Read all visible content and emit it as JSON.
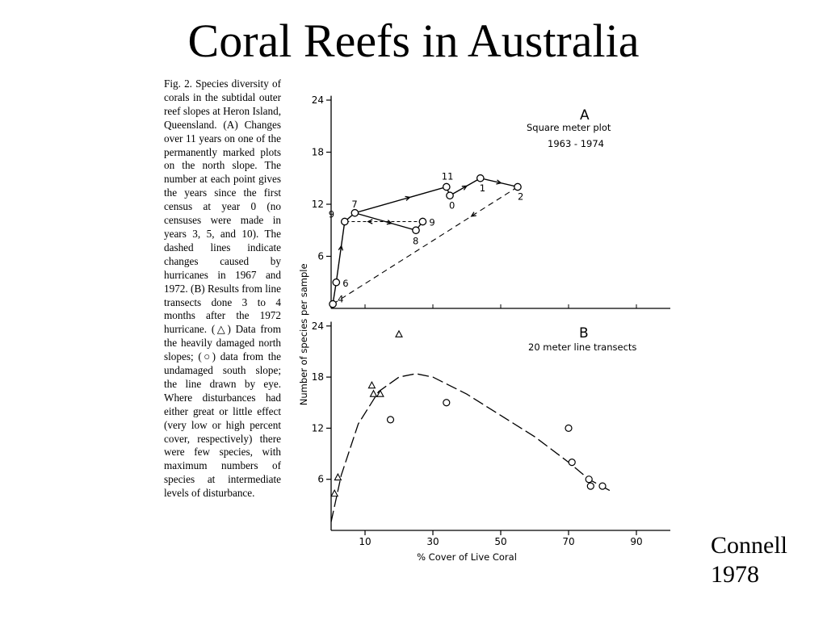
{
  "slide": {
    "title": "Coral Reefs in Australia",
    "citation_name": "Connell",
    "citation_year": "1978"
  },
  "caption": {
    "text": "Fig. 2. Species diversity of corals in the subtidal outer reef slopes at Heron Island, Queensland. (A) Changes over 11 years on one of the permanently marked plots on the north slope. The number at each point gives the years since the first census at year 0 (no censuses were made in years 3, 5, and 10). The dashed lines indicate changes caused by hurricanes in 1967 and 1972. (B) Results from line transects done 3 to 4 months after the 1972 hurricane. (△) Data from the heavily damaged north slopes; (○) data from the undamaged south slope; the line drawn by eye. Where disturbances had either great or little effect (very low or high percent cover, respectively) there were few species, with maximum numbers of species at intermediate levels of disturbance."
  },
  "chart_data": [
    {
      "panel": "A",
      "type": "line",
      "title": "Square meter plot",
      "subtitle": "1963 - 1974",
      "xlabel": "% Cover of Live Coral",
      "ylabel": "Number of species per sample",
      "xlim": [
        0,
        100
      ],
      "ylim": [
        0,
        24
      ],
      "yticks": [
        6,
        12,
        18,
        24
      ],
      "points": [
        {
          "label": "0",
          "x": 35,
          "y": 13
        },
        {
          "label": "1",
          "x": 44,
          "y": 15
        },
        {
          "label": "2",
          "x": 55,
          "y": 14
        },
        {
          "label": "4",
          "x": 0.5,
          "y": 0.5
        },
        {
          "label": "6",
          "x": 1.5,
          "y": 3
        },
        {
          "label": "7",
          "x": 7,
          "y": 11
        },
        {
          "label": "8",
          "x": 25,
          "y": 9
        },
        {
          "label": "9",
          "x": 4,
          "y": 10
        },
        {
          "label": "9",
          "x": 27,
          "y": 10
        },
        {
          "label": "11",
          "x": 34,
          "y": 14
        }
      ],
      "solid_path": [
        [
          0.5,
          0.5
        ],
        [
          1.5,
          3
        ],
        [
          4,
          10
        ],
        [
          7,
          11
        ],
        [
          34,
          14
        ],
        [
          35,
          13
        ],
        [
          44,
          15
        ],
        [
          55,
          14
        ]
      ],
      "solid_path_b": [
        [
          7,
          11
        ],
        [
          25,
          9
        ],
        [
          27,
          10
        ]
      ],
      "dashed_paths": [
        [
          [
            55,
            14
          ],
          [
            0.5,
            0.5
          ]
        ],
        [
          [
            27,
            10
          ],
          [
            4,
            10
          ]
        ]
      ]
    },
    {
      "panel": "B",
      "type": "scatter",
      "title": "20 meter line transects",
      "xlabel": "% Cover of Live Coral",
      "ylabel": "Number of species per sample",
      "xlim": [
        0,
        100
      ],
      "ylim": [
        0,
        24
      ],
      "xticks": [
        10,
        30,
        50,
        70,
        90
      ],
      "yticks": [
        6,
        12,
        18,
        24
      ],
      "series": [
        {
          "marker": "triangle",
          "x": [
            1,
            2,
            12,
            12.5,
            14.5,
            20
          ],
          "y": [
            4.3,
            6.2,
            17,
            16,
            16,
            23
          ]
        },
        {
          "marker": "circle",
          "x": [
            17.5,
            34,
            70,
            71,
            76,
            76.5,
            80
          ],
          "y": [
            13,
            15,
            12,
            8,
            6,
            5.2,
            5.2
          ]
        }
      ],
      "curve": {
        "style": "dashed",
        "x": [
          0,
          3,
          8,
          14,
          20,
          25,
          30,
          40,
          50,
          60,
          70,
          76,
          83
        ],
        "y": [
          1,
          6.5,
          12.5,
          16.3,
          18,
          18.4,
          18,
          16,
          13.5,
          11,
          8,
          6,
          4.5
        ]
      }
    }
  ]
}
